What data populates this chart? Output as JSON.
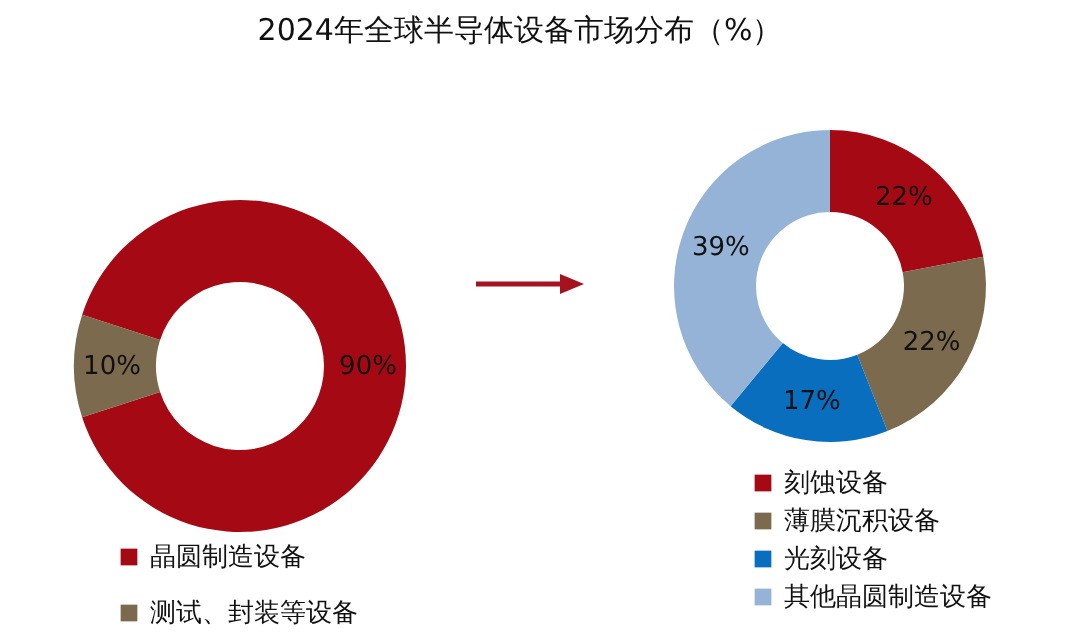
{
  "chart_data": [
    {
      "type": "donut",
      "title": "2024年全球半导体设备市场分布（%）",
      "categories": [
        "晶圆制造设备",
        "测试、封装等设备"
      ],
      "values": [
        90,
        10
      ],
      "colors": [
        "#a50a14",
        "#7b6a4e"
      ],
      "value_labels": [
        "90%",
        "10%"
      ],
      "legend": "bottom"
    },
    {
      "type": "donut",
      "categories": [
        "刻蚀设备",
        "薄膜沉积设备",
        "光刻设备",
        "其他晶圆制造设备"
      ],
      "values": [
        22,
        22,
        17,
        39
      ],
      "colors": [
        "#a50a14",
        "#7b6a4e",
        "#0a6ebe",
        "#95b3d7"
      ],
      "value_labels": [
        "22%",
        "22%",
        "17%",
        "39%"
      ],
      "legend": "bottom"
    }
  ]
}
